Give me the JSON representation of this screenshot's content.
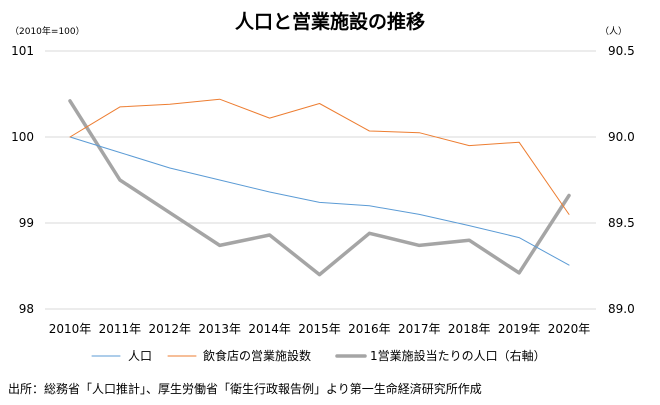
{
  "chart_data": {
    "type": "line",
    "title": "人口と営業施設の推移",
    "left_unit": "（2010年=100）",
    "right_unit": "（人）",
    "categories": [
      "2010年",
      "2011年",
      "2012年",
      "2013年",
      "2014年",
      "2015年",
      "2016年",
      "2017年",
      "2018年",
      "2019年",
      "2020年"
    ],
    "left_axis": {
      "ylim": [
        98,
        101
      ],
      "ticks": [
        "98",
        "99",
        "100",
        "101"
      ],
      "tick_values": [
        98,
        99,
        100,
        101
      ]
    },
    "right_axis": {
      "ylim": [
        89.0,
        90.5
      ],
      "ticks": [
        "89.0",
        "89.5",
        "90.0",
        "90.5"
      ],
      "tick_values": [
        89.0,
        89.5,
        90.0,
        90.5
      ]
    },
    "series": [
      {
        "name": "人口",
        "axis": "left",
        "color": "#5B9BD5",
        "values": [
          100.0,
          99.82,
          99.64,
          99.5,
          99.36,
          99.24,
          99.2,
          99.1,
          98.97,
          98.83,
          98.51
        ]
      },
      {
        "name": "飲食店の営業施設数",
        "axis": "left",
        "color": "#ED7D31",
        "values": [
          100.0,
          100.35,
          100.38,
          100.44,
          100.22,
          100.39,
          100.07,
          100.05,
          99.9,
          99.94,
          99.1
        ]
      },
      {
        "name": "1営業施設当たりの人口（右軸）",
        "axis": "right",
        "color": "#A5A5A5",
        "values": [
          90.21,
          89.75,
          89.56,
          89.37,
          89.43,
          89.2,
          89.44,
          89.37,
          89.4,
          89.21,
          89.66
        ]
      }
    ]
  },
  "source_note": "出所：総務省「人口推計」、厚生労働省「衛生行政報告例」より第一生命経済研究所作成"
}
